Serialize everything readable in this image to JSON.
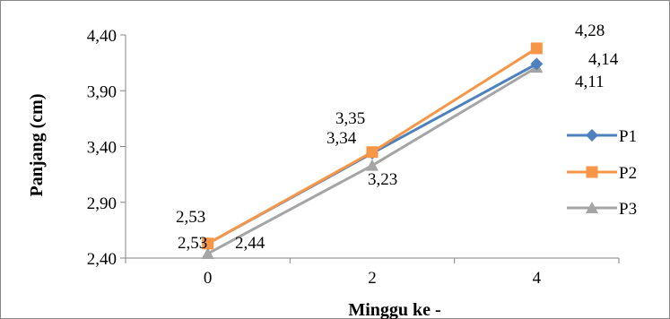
{
  "chart_data": {
    "type": "line",
    "xlabel": "Minggu ke -",
    "ylabel": "Panjang (cm)",
    "categories": [
      "0",
      "2",
      "4"
    ],
    "yticks": [
      "2,40",
      "2,90",
      "3,40",
      "3,90",
      "4,40"
    ],
    "ylim": [
      2.4,
      4.4
    ],
    "grid": false,
    "legend_position": "right",
    "series": [
      {
        "name": "P1",
        "color": "#4F81BD",
        "marker": "diamond",
        "values": [
          2.53,
          3.34,
          4.14
        ],
        "labels": [
          "2,53",
          "3,34",
          "4,14"
        ]
      },
      {
        "name": "P2",
        "color": "#F79646",
        "marker": "square",
        "values": [
          2.53,
          3.35,
          4.28
        ],
        "labels": [
          "2,53",
          "3,35",
          "4,28"
        ]
      },
      {
        "name": "P3",
        "color": "#A5A5A5",
        "marker": "triangle",
        "values": [
          2.44,
          3.23,
          4.11
        ],
        "labels": [
          "2,44",
          "3,23",
          "4,11"
        ]
      }
    ]
  }
}
